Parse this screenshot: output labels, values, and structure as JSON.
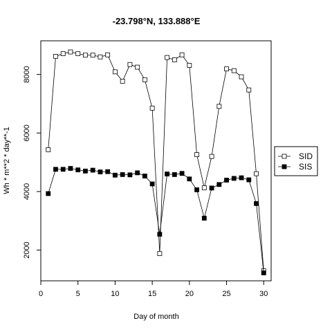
{
  "chart_data": {
    "type": "line",
    "title": "-23.798°N, 133.888°E",
    "xlabel": "Day of month",
    "ylabel": "Wh * m**2 * day**-1",
    "xlim": [
      0,
      31
    ],
    "ylim": [
      950,
      9150
    ],
    "x_ticks": [
      0,
      5,
      10,
      15,
      20,
      25,
      30
    ],
    "y_ticks": [
      2000,
      4000,
      6000,
      8000
    ],
    "legend_position": "right",
    "grid": false,
    "x": [
      1,
      2,
      3,
      4,
      5,
      6,
      7,
      8,
      9,
      10,
      11,
      12,
      13,
      14,
      15,
      16,
      17,
      18,
      19,
      20,
      21,
      22,
      23,
      24,
      25,
      26,
      27,
      28,
      29,
      30
    ],
    "series": [
      {
        "name": "SID",
        "marker": "open-square",
        "values": [
          5430,
          8620,
          8710,
          8770,
          8710,
          8660,
          8660,
          8600,
          8670,
          8090,
          7770,
          8340,
          8250,
          7820,
          6850,
          1880,
          8580,
          8500,
          8670,
          8310,
          5260,
          4130,
          5200,
          6910,
          8190,
          8130,
          7920,
          7470,
          4610,
          1290
        ]
      },
      {
        "name": "SIS",
        "marker": "filled-square",
        "values": [
          3930,
          4760,
          4760,
          4790,
          4740,
          4700,
          4730,
          4670,
          4680,
          4560,
          4580,
          4570,
          4640,
          4530,
          4260,
          2540,
          4600,
          4580,
          4620,
          4430,
          4060,
          3090,
          4120,
          4240,
          4390,
          4450,
          4470,
          4400,
          3590,
          1220
        ]
      }
    ]
  }
}
